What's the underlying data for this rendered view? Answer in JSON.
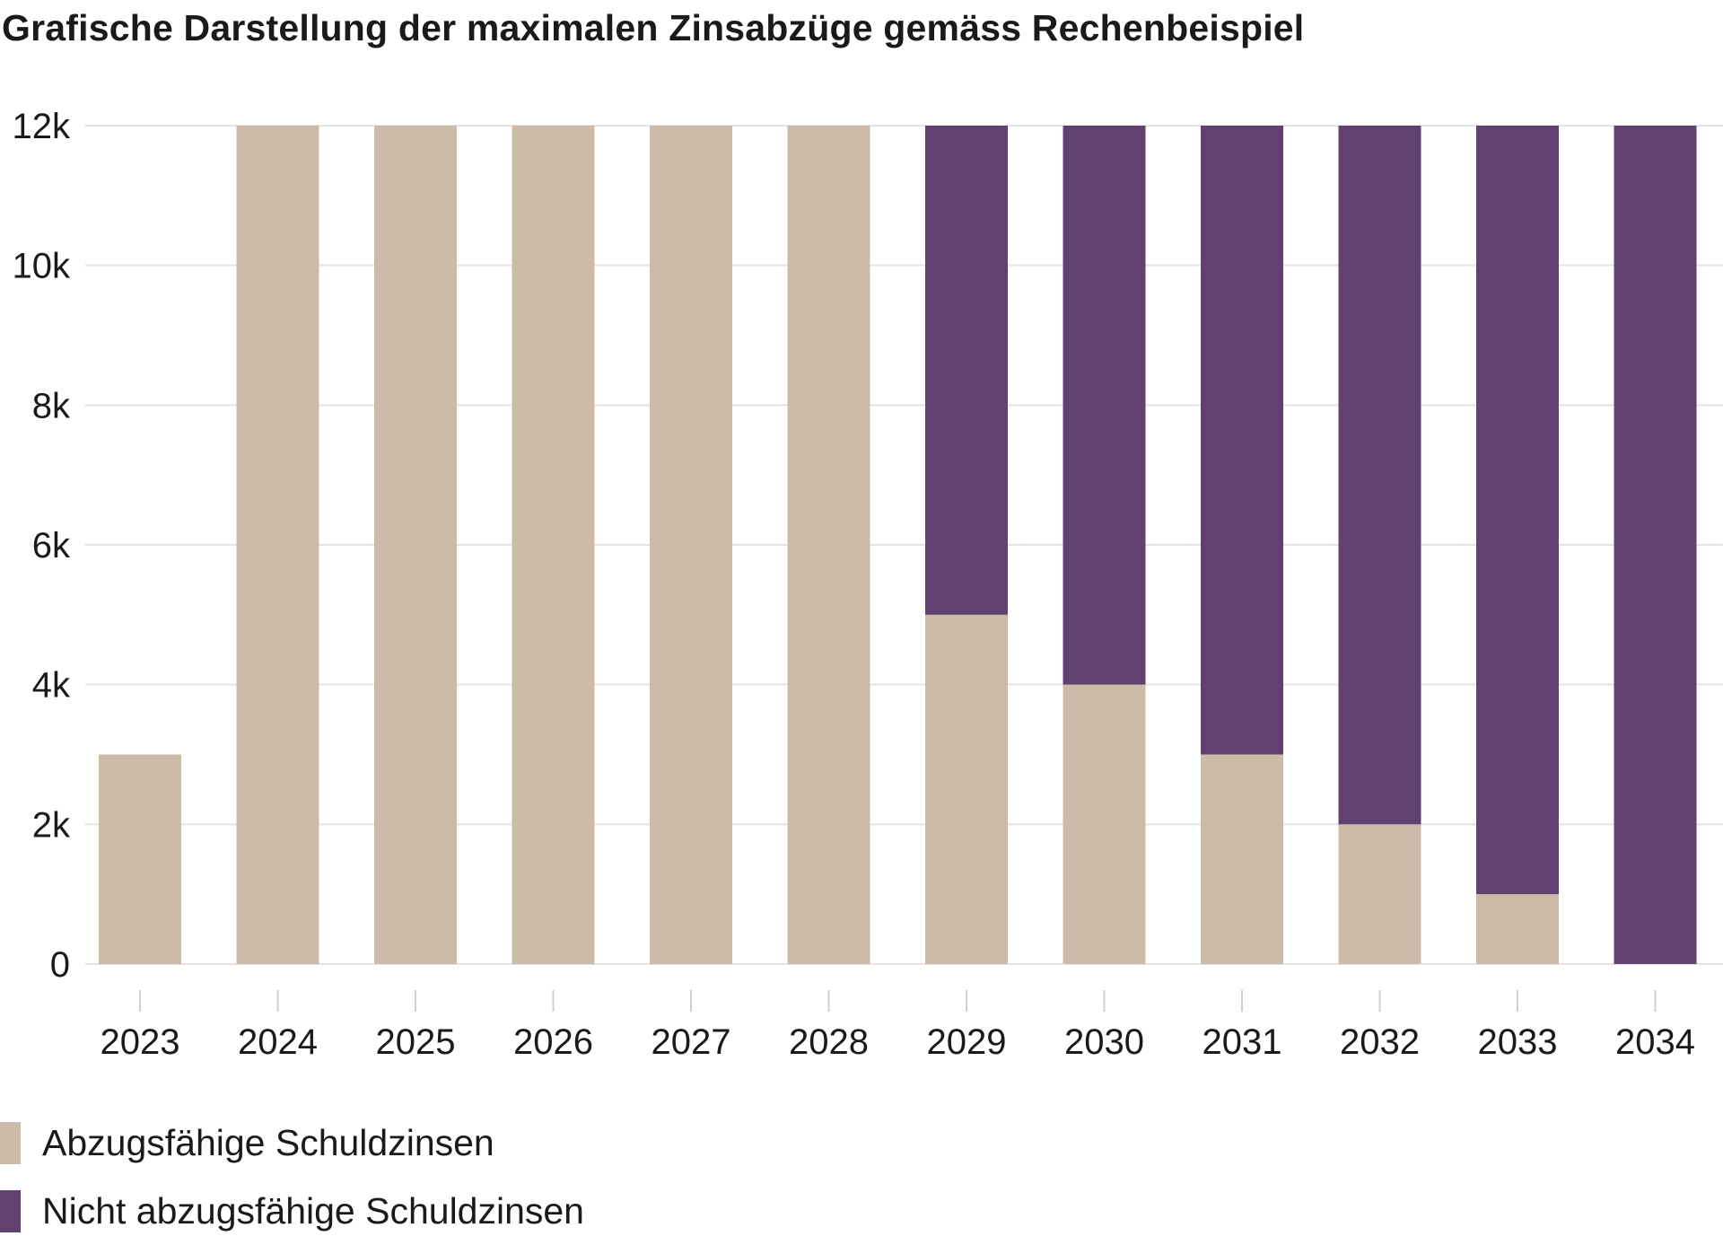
{
  "chart_data": {
    "type": "bar",
    "stacked": true,
    "title": "Grafische Darstellung der maximalen Zinsabzüge gemäss Rechenbeispiel",
    "xlabel": "",
    "ylabel": "",
    "ylim": [
      0,
      12000
    ],
    "yticks": [
      {
        "value": 0,
        "label": "0"
      },
      {
        "value": 2000,
        "label": "2k"
      },
      {
        "value": 4000,
        "label": "4k"
      },
      {
        "value": 6000,
        "label": "6k"
      },
      {
        "value": 8000,
        "label": "8k"
      },
      {
        "value": 10000,
        "label": "10k"
      },
      {
        "value": 12000,
        "label": "12k"
      }
    ],
    "grid": true,
    "legend_position": "bottom-left",
    "categories": [
      "2023",
      "2024",
      "2025",
      "2026",
      "2027",
      "2028",
      "2029",
      "2030",
      "2031",
      "2032",
      "2033",
      "2034"
    ],
    "series": [
      {
        "name": "Abzugsfähige Schuldzinsen",
        "color": "#cdbba9",
        "values": [
          3000,
          12000,
          12000,
          12000,
          12000,
          12000,
          5000,
          4000,
          3000,
          2000,
          1000,
          0
        ]
      },
      {
        "name": "Nicht abzugsfähige Schuldzinsen",
        "color": "#604170",
        "values": [
          0,
          0,
          0,
          0,
          0,
          0,
          7000,
          8000,
          9000,
          10000,
          11000,
          12000
        ]
      }
    ]
  }
}
